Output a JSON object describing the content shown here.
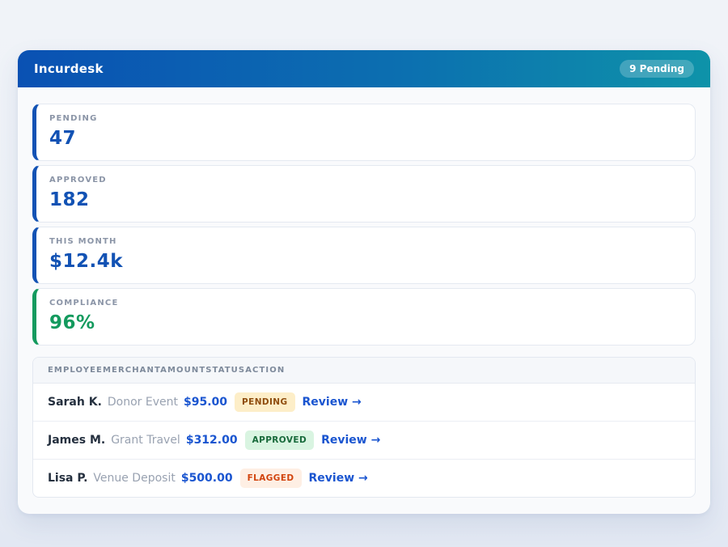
{
  "app": {
    "title": "Incurdesk",
    "header_badge": "9 Pending"
  },
  "stats": [
    {
      "label": "PENDING",
      "value": "47",
      "accent": "#1252b4"
    },
    {
      "label": "APPROVED",
      "value": "182",
      "accent": "#1252b4"
    },
    {
      "label": "THIS MONTH",
      "value": "$12.4k",
      "accent": "#1252b4"
    },
    {
      "label": "COMPLIANCE",
      "value": "96%",
      "accent": "#149a5e"
    }
  ],
  "table": {
    "headers": [
      "EMPLOYEE",
      "MERCHANT",
      "AMOUNT",
      "STATUS",
      "ACTION"
    ],
    "rows": [
      {
        "employee": "Sarah K.",
        "merchant": "Donor Event",
        "amount": "$95.00",
        "status": "PENDING",
        "action": "Review →"
      },
      {
        "employee": "James M.",
        "merchant": "Grant Travel",
        "amount": "$312.00",
        "status": "APPROVED",
        "action": "Review →"
      },
      {
        "employee": "Lisa P.",
        "merchant": "Venue Deposit",
        "amount": "$500.00",
        "status": "FLAGGED",
        "action": "Review →"
      }
    ]
  },
  "colors": {
    "header_gradient_start": "#0a51b3",
    "header_gradient_end": "#0e93a9",
    "stat_accent_blue": "#1252b4",
    "stat_accent_green": "#149a5e",
    "link_blue": "#1a55d0",
    "badge_pending_bg": "#fdeec8",
    "badge_pending_text": "#8f4d0e",
    "badge_approved_bg": "#d9f4e1",
    "badge_approved_text": "#186a3b",
    "badge_flagged_bg": "#feefe4",
    "badge_flagged_text": "#d2440e"
  }
}
